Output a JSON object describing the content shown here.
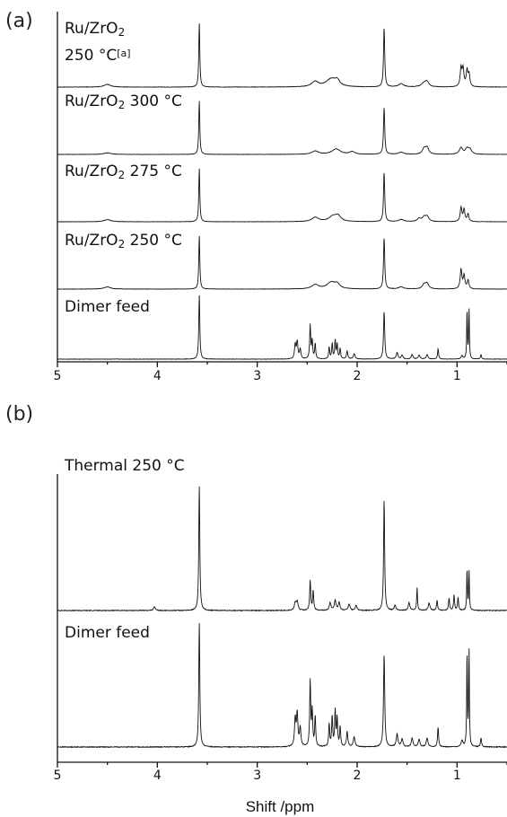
{
  "chart_data": [
    {
      "panel": "(a)",
      "type": "line",
      "x_unit": "ppm",
      "xlim": [
        5,
        0.5
      ],
      "x_reversed": true,
      "x_ticks": [
        5,
        4,
        3,
        2,
        1
      ],
      "stacked": true,
      "series": [
        {
          "name": "Ru/ZrO2 250 °C[a]",
          "label_lines": [
            {
              "main": "Ru/ZrO",
              "sub": "2",
              "rest": "",
              "sup": ""
            },
            {
              "main": "250 °C",
              "sub": "",
              "rest": "",
              "sup": "[a]"
            }
          ],
          "peaks": [
            [
              4.5,
              0.04,
              0.04
            ],
            [
              3.58,
              1.0,
              0.006
            ],
            [
              2.42,
              0.08,
              0.04
            ],
            [
              2.26,
              0.12,
              0.06
            ],
            [
              2.2,
              0.08,
              0.03
            ],
            [
              1.73,
              0.92,
              0.007
            ],
            [
              1.56,
              0.05,
              0.03
            ],
            [
              1.33,
              0.06,
              0.03
            ],
            [
              1.3,
              0.07,
              0.02
            ],
            [
              0.96,
              0.28,
              0.01
            ],
            [
              0.94,
              0.26,
              0.01
            ],
            [
              0.9,
              0.24,
              0.01
            ],
            [
              0.88,
              0.18,
              0.01
            ]
          ]
        },
        {
          "name": "Ru/ZrO2 300 °C",
          "label_lines": [
            {
              "main": "Ru/ZrO",
              "sub": "2",
              "rest": " 300 °C",
              "sup": ""
            }
          ],
          "peaks": [
            [
              4.5,
              0.03,
              0.04
            ],
            [
              3.58,
              1.0,
              0.006
            ],
            [
              2.42,
              0.06,
              0.04
            ],
            [
              2.21,
              0.1,
              0.05
            ],
            [
              2.05,
              0.05,
              0.03
            ],
            [
              1.73,
              0.88,
              0.007
            ],
            [
              1.56,
              0.04,
              0.03
            ],
            [
              1.33,
              0.1,
              0.02
            ],
            [
              1.3,
              0.12,
              0.02
            ],
            [
              0.96,
              0.12,
              0.02
            ],
            [
              0.9,
              0.1,
              0.02
            ],
            [
              0.87,
              0.08,
              0.02
            ]
          ]
        },
        {
          "name": "Ru/ZrO2 275 °C",
          "label_lines": [
            {
              "main": "Ru/ZrO",
              "sub": "2",
              "rest": " 275 °C",
              "sup": ""
            }
          ],
          "peaks": [
            [
              4.5,
              0.04,
              0.04
            ],
            [
              3.58,
              1.0,
              0.006
            ],
            [
              2.42,
              0.08,
              0.04
            ],
            [
              2.24,
              0.1,
              0.05
            ],
            [
              2.19,
              0.09,
              0.03
            ],
            [
              1.73,
              0.92,
              0.007
            ],
            [
              1.56,
              0.04,
              0.03
            ],
            [
              1.38,
              0.06,
              0.02
            ],
            [
              1.33,
              0.08,
              0.02
            ],
            [
              1.3,
              0.09,
              0.02
            ],
            [
              0.96,
              0.26,
              0.01
            ],
            [
              0.93,
              0.22,
              0.01
            ],
            [
              0.89,
              0.14,
              0.01
            ]
          ]
        },
        {
          "name": "Ru/ZrO2 250 °C",
          "label_lines": [
            {
              "main": "Ru/ZrO",
              "sub": "2",
              "rest": " 250 °C",
              "sup": ""
            }
          ],
          "peaks": [
            [
              4.5,
              0.04,
              0.04
            ],
            [
              3.58,
              1.0,
              0.006
            ],
            [
              2.42,
              0.08,
              0.04
            ],
            [
              2.26,
              0.12,
              0.05
            ],
            [
              2.2,
              0.08,
              0.03
            ],
            [
              1.73,
              0.96,
              0.007
            ],
            [
              1.56,
              0.04,
              0.03
            ],
            [
              1.33,
              0.08,
              0.02
            ],
            [
              1.3,
              0.1,
              0.02
            ],
            [
              0.96,
              0.36,
              0.01
            ],
            [
              0.93,
              0.24,
              0.01
            ],
            [
              0.89,
              0.16,
              0.01
            ]
          ]
        },
        {
          "name": "Dimer feed",
          "label_lines": [
            {
              "main": "Dimer feed",
              "sub": "",
              "rest": "",
              "sup": ""
            }
          ],
          "peaks": [
            [
              3.58,
              1.0,
              0.006
            ],
            [
              2.62,
              0.22,
              0.008
            ],
            [
              2.6,
              0.26,
              0.008
            ],
            [
              2.57,
              0.15,
              0.008
            ],
            [
              2.47,
              0.52,
              0.006
            ],
            [
              2.45,
              0.28,
              0.006
            ],
            [
              2.42,
              0.24,
              0.006
            ],
            [
              2.28,
              0.18,
              0.006
            ],
            [
              2.25,
              0.24,
              0.006
            ],
            [
              2.22,
              0.28,
              0.006
            ],
            [
              2.2,
              0.22,
              0.006
            ],
            [
              2.17,
              0.16,
              0.006
            ],
            [
              2.1,
              0.12,
              0.008
            ],
            [
              2.03,
              0.08,
              0.01
            ],
            [
              1.73,
              0.74,
              0.007
            ],
            [
              1.6,
              0.1,
              0.01
            ],
            [
              1.55,
              0.06,
              0.01
            ],
            [
              1.45,
              0.07,
              0.01
            ],
            [
              1.38,
              0.06,
              0.01
            ],
            [
              1.3,
              0.07,
              0.01
            ],
            [
              1.19,
              0.16,
              0.006
            ],
            [
              0.95,
              0.05,
              0.01
            ],
            [
              0.9,
              0.78,
              0.004
            ],
            [
              0.88,
              0.78,
              0.004
            ],
            [
              0.76,
              0.07,
              0.006
            ]
          ]
        }
      ]
    },
    {
      "panel": "(b)",
      "type": "line",
      "x_unit": "ppm",
      "xlabel": "Shift /ppm",
      "xlim": [
        5,
        0.5
      ],
      "x_reversed": true,
      "x_ticks": [
        5,
        4,
        3,
        2,
        1
      ],
      "stacked": true,
      "series": [
        {
          "name": "Thermal 250 °C",
          "label_lines": [
            {
              "main": "Thermal 250 °C",
              "sub": "",
              "rest": "",
              "sup": ""
            }
          ],
          "peaks": [
            [
              4.03,
              0.03,
              0.01
            ],
            [
              3.58,
              1.0,
              0.006
            ],
            [
              2.62,
              0.06,
              0.01
            ],
            [
              2.6,
              0.07,
              0.01
            ],
            [
              2.47,
              0.24,
              0.006
            ],
            [
              2.44,
              0.16,
              0.006
            ],
            [
              2.27,
              0.06,
              0.01
            ],
            [
              2.22,
              0.08,
              0.01
            ],
            [
              2.18,
              0.06,
              0.01
            ],
            [
              2.08,
              0.05,
              0.01
            ],
            [
              2.01,
              0.04,
              0.01
            ],
            [
              1.73,
              0.9,
              0.006
            ],
            [
              1.62,
              0.04,
              0.01
            ],
            [
              1.48,
              0.06,
              0.01
            ],
            [
              1.4,
              0.18,
              0.005
            ],
            [
              1.28,
              0.06,
              0.01
            ],
            [
              1.2,
              0.08,
              0.006
            ],
            [
              1.08,
              0.1,
              0.006
            ],
            [
              1.03,
              0.12,
              0.006
            ],
            [
              0.99,
              0.1,
              0.006
            ],
            [
              0.9,
              0.34,
              0.004
            ],
            [
              0.88,
              0.32,
              0.004
            ]
          ]
        },
        {
          "name": "Dimer feed",
          "label_lines": [
            {
              "main": "Dimer feed",
              "sub": "",
              "rest": "",
              "sup": ""
            }
          ],
          "peaks": [
            [
              3.58,
              1.0,
              0.006
            ],
            [
              2.62,
              0.22,
              0.008
            ],
            [
              2.6,
              0.26,
              0.008
            ],
            [
              2.57,
              0.15,
              0.008
            ],
            [
              2.47,
              0.52,
              0.006
            ],
            [
              2.45,
              0.28,
              0.006
            ],
            [
              2.42,
              0.24,
              0.006
            ],
            [
              2.28,
              0.18,
              0.006
            ],
            [
              2.25,
              0.24,
              0.006
            ],
            [
              2.22,
              0.28,
              0.006
            ],
            [
              2.2,
              0.22,
              0.006
            ],
            [
              2.17,
              0.16,
              0.006
            ],
            [
              2.1,
              0.12,
              0.008
            ],
            [
              2.03,
              0.08,
              0.01
            ],
            [
              1.73,
              0.74,
              0.007
            ],
            [
              1.6,
              0.1,
              0.01
            ],
            [
              1.55,
              0.06,
              0.01
            ],
            [
              1.45,
              0.07,
              0.01
            ],
            [
              1.38,
              0.06,
              0.01
            ],
            [
              1.3,
              0.07,
              0.01
            ],
            [
              1.19,
              0.16,
              0.006
            ],
            [
              0.95,
              0.05,
              0.01
            ],
            [
              0.9,
              0.78,
              0.004
            ],
            [
              0.88,
              0.78,
              0.004
            ],
            [
              0.76,
              0.07,
              0.006
            ]
          ]
        }
      ]
    }
  ]
}
